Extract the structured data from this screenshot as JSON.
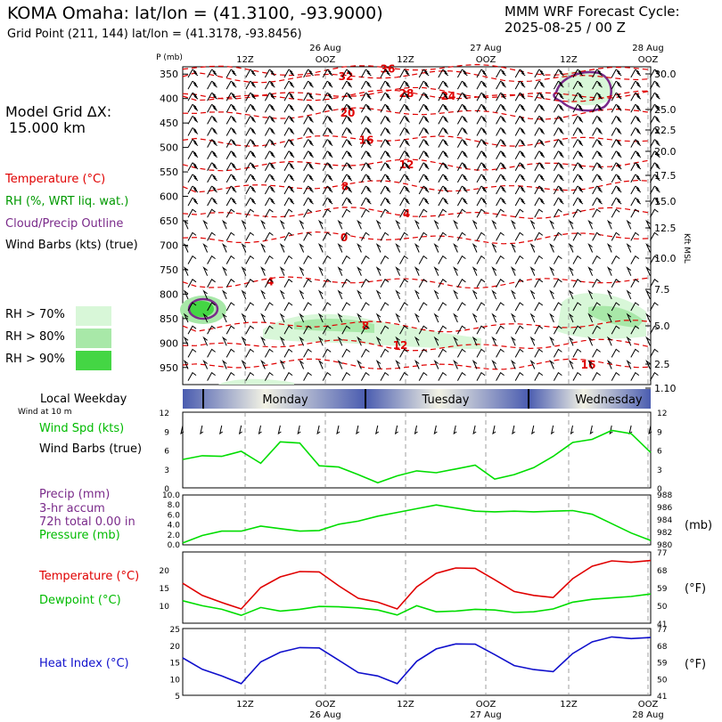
{
  "header": {
    "station": "KOMA Omaha:  lat/lon = (41.3100, -93.9000)",
    "grid_point": "Grid Point (211, 144) lat/lon = (41.3178, -93.8456)",
    "model": "MMM WRF Forecast Cycle:",
    "cycle": "2025-08-25 / 00  Z"
  },
  "legend": {
    "dx_label": "Model Grid ΔX:",
    "dx_value": "15.000 km",
    "temperature": "Temperature (°C)",
    "rh": "RH (%, WRT liq. wat.)",
    "cloud": "Cloud/Precip Outline",
    "wind": "Wind Barbs (kts) (true)",
    "rh70": "RH > 70%",
    "rh80": "RH > 80%",
    "rh90": "RH > 90%",
    "rh_colors": [
      "#d8f7d8",
      "#a8e8a8",
      "#44d644"
    ],
    "local_weekday": "Local Weekday",
    "wind10": "Wind at 10 m",
    "wind_speed": "Wind Spd (kts)",
    "wind_barbs": "Wind Barbs (true)",
    "precip": "Precip (mm)",
    "precip2": "3-hr accum",
    "precip3": "72h total 0.00 in",
    "pressure": "Pressure (mb)",
    "temp2": "Temperature (°C)",
    "dewpoint": "Dewpoint (°C)",
    "heat_index": "Heat Index (°C)",
    "unit_mb": "(mb)",
    "unit_f1": "(°F)",
    "unit_f2": "(°F)",
    "kft": "Kft MSL"
  },
  "colors": {
    "temperature": "#e00000",
    "green": "#00dd00",
    "dewpoint": "#00dd00",
    "heat_index": "#1010cc",
    "cloud": "#7a2a8a",
    "grid": "#888888"
  },
  "chart_data": [
    {
      "type": "heatmap",
      "name": "cross-section",
      "title": "",
      "ylabel": "P (mb)",
      "yticks": [
        "350",
        "400",
        "450",
        "500",
        "550",
        "600",
        "650",
        "700",
        "750",
        "800",
        "850",
        "900",
        "950"
      ],
      "right_ticks": [
        "30.0",
        "25.0",
        "22.5",
        "20.0",
        "17.5",
        "15.0",
        "12.5",
        "10.0",
        "7.5",
        "5.0",
        "2.5",
        "1.10"
      ],
      "right_label": "Kft MSL",
      "top_ticks": [
        "12Z",
        "OOZ",
        "12Z",
        "OOZ",
        "12Z",
        "OOZ"
      ],
      "top_dates": [
        "26 Aug",
        "27 Aug",
        "28 Aug"
      ],
      "isotherms": [
        {
          "label": "36",
          "p": 340
        },
        {
          "label": "32",
          "p": 355
        },
        {
          "label": "28",
          "p": 390
        },
        {
          "label": "24",
          "p": 395
        },
        {
          "label": "20",
          "p": 430
        },
        {
          "label": "16",
          "p": 485
        },
        {
          "label": "12",
          "p": 535
        },
        {
          "label": "8",
          "p": 580
        },
        {
          "label": "4",
          "p": 635
        },
        {
          "label": "0",
          "p": 685
        },
        {
          "label": "4",
          "p": 775
        },
        {
          "label": "8",
          "p": 865
        },
        {
          "label": "12",
          "p": 905
        },
        {
          "label": "16",
          "p": 945
        }
      ],
      "days": [
        "Monday",
        "Tuesday",
        "Wednesday"
      ]
    },
    {
      "type": "line",
      "name": "wind-speed",
      "series": [
        {
          "name": "Wind Spd (kts)",
          "values": [
            4.5,
            5.1,
            5.0,
            5.8,
            3.9,
            7.3,
            7.1,
            3.5,
            3.3,
            2.1,
            0.8,
            1.9,
            2.7,
            2.4,
            3.0,
            3.6,
            1.4,
            2.1,
            3.2,
            5.0,
            7.2,
            7.7,
            9.1,
            8.6,
            5.6
          ]
        }
      ],
      "ylim": [
        0,
        12
      ],
      "yticks": [
        0,
        3,
        6,
        9,
        12
      ]
    },
    {
      "type": "line",
      "name": "pressure",
      "precip_ticks": [
        "0.0",
        "2.0",
        "4.0",
        "6.0",
        "8.0",
        "10.0"
      ],
      "pressure_ticks": [
        "980",
        "982",
        "984",
        "986",
        "988"
      ],
      "series": [
        {
          "name": "Pressure (mb)",
          "values": [
            980.3,
            981.5,
            982.2,
            982.2,
            983.0,
            982.6,
            982.2,
            982.3,
            983.3,
            983.8,
            984.6,
            985.2,
            985.8,
            986.4,
            985.9,
            985.4,
            985.3,
            985.4,
            985.3,
            985.4,
            985.5,
            984.9,
            983.4,
            981.9,
            980.7
          ]
        }
      ],
      "ylim": [
        980,
        988
      ]
    },
    {
      "type": "line",
      "name": "temperature-dewpoint",
      "left_ticks": [
        "10",
        "15",
        "20"
      ],
      "right_ticks": [
        "41",
        "50",
        "59",
        "68",
        "77"
      ],
      "series": [
        {
          "name": "Temperature (°C)",
          "values": [
            16.2,
            12.8,
            10.8,
            9.0,
            15.0,
            18.0,
            19.5,
            19.4,
            15.5,
            12.0,
            10.9,
            9.0,
            15.2,
            19.0,
            20.5,
            20.4,
            17.2,
            13.9,
            12.8,
            12.2,
            17.5,
            21.0,
            22.5,
            22.1,
            22.6
          ]
        },
        {
          "name": "Dewpoint (°C)",
          "values": [
            11.3,
            9.9,
            8.9,
            7.2,
            9.4,
            8.4,
            8.9,
            9.7,
            9.6,
            9.3,
            8.7,
            7.3,
            9.9,
            8.2,
            8.4,
            8.9,
            8.7,
            8.0,
            8.2,
            9.0,
            10.9,
            11.7,
            12.1,
            12.5,
            13.2
          ]
        }
      ],
      "ylim": [
        5,
        25
      ]
    },
    {
      "type": "line",
      "name": "heat-index",
      "left_ticks": [
        "5",
        "10",
        "15",
        "20",
        "25"
      ],
      "right_ticks": [
        "41",
        "50",
        "59",
        "68",
        "77"
      ],
      "series": [
        {
          "name": "Heat Index (°C)",
          "values": [
            16.2,
            12.8,
            10.8,
            8.5,
            15.0,
            17.9,
            19.3,
            19.2,
            15.5,
            11.8,
            10.8,
            8.5,
            15.2,
            18.9,
            20.4,
            20.3,
            17.2,
            13.9,
            12.7,
            12.1,
            17.5,
            21.0,
            22.5,
            22.0,
            22.3
          ]
        }
      ],
      "ylim": [
        5,
        25
      ]
    }
  ],
  "bottom_axis": {
    "ticks": [
      "12Z",
      "OOZ",
      "12Z",
      "OOZ",
      "12Z",
      "OOZ"
    ],
    "dates": [
      "26 Aug",
      "27 Aug",
      "28 Aug"
    ]
  }
}
